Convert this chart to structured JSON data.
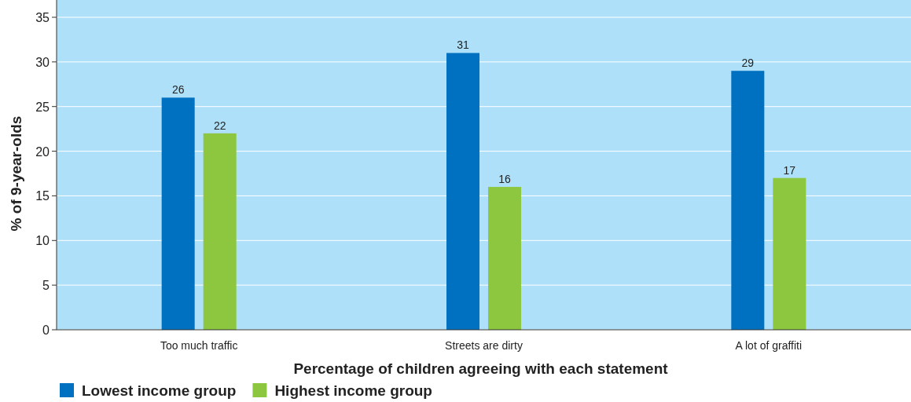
{
  "chart_data": {
    "type": "bar",
    "xlabel": "Percentage of children agreeing with each statement",
    "ylabel": "% of 9-year-olds",
    "categories": [
      "Too much traffic",
      "Streets are dirty",
      "A lot of graffiti"
    ],
    "series": [
      {
        "name": "Lowest income group",
        "color": "#0070c0",
        "values": [
          26,
          31,
          29
        ]
      },
      {
        "name": "Highest income group",
        "color": "#8dc63f",
        "values": [
          22,
          16,
          17
        ]
      }
    ],
    "ylim": [
      0,
      35
    ],
    "yticks": [
      0,
      5,
      10,
      15,
      20,
      25,
      30,
      35
    ],
    "grid": "y",
    "legend": "bottom left",
    "data_labels": true
  }
}
